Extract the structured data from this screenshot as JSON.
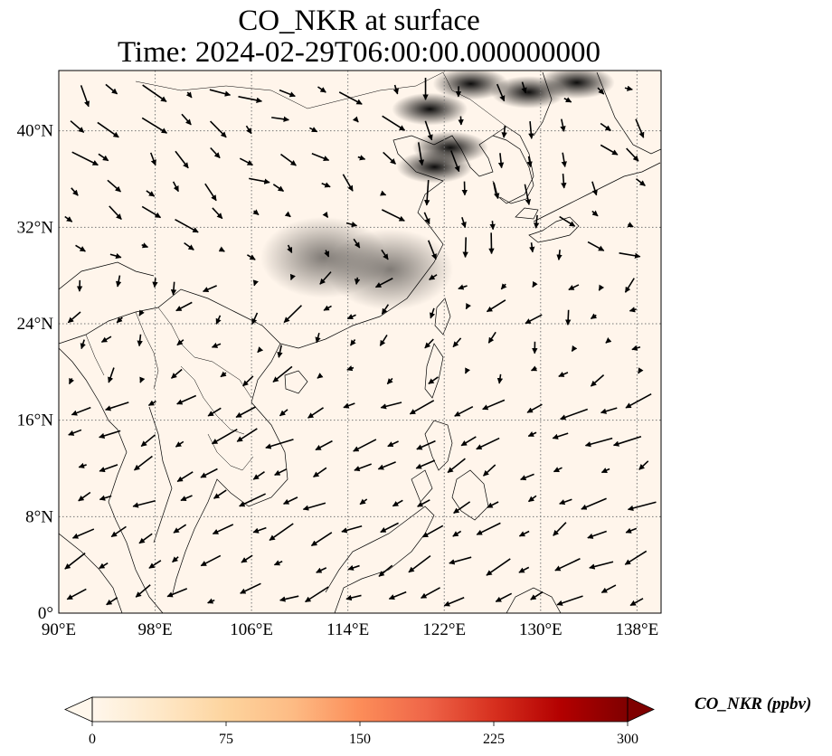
{
  "title": {
    "line1": "CO_NKR at surface",
    "line2": "Time: 2024-02-29T06:00:00.000000000"
  },
  "map": {
    "lon_range": [
      90,
      140
    ],
    "lat_range": [
      0,
      45
    ],
    "lon_ticks": [
      {
        "value": 90,
        "label": "90°E"
      },
      {
        "value": 98,
        "label": "98°E"
      },
      {
        "value": 106,
        "label": "106°E"
      },
      {
        "value": 114,
        "label": "114°E"
      },
      {
        "value": 122,
        "label": "122°E"
      },
      {
        "value": 130,
        "label": "130°E"
      },
      {
        "value": 138,
        "label": "138°E"
      }
    ],
    "lat_ticks": [
      {
        "value": 0,
        "label": "0°"
      },
      {
        "value": 8,
        "label": "8°N"
      },
      {
        "value": 16,
        "label": "16°N"
      },
      {
        "value": 24,
        "label": "24°N"
      },
      {
        "value": 32,
        "label": "32°N"
      },
      {
        "value": 40,
        "label": "40°N"
      }
    ],
    "gridlines": true,
    "background_color": "#fff5eb",
    "coastline_color": "#000000"
  },
  "colorbar": {
    "label": "CO_NKR (ppbv)",
    "ticks": [
      "0",
      "75",
      "150",
      "225",
      "300"
    ],
    "tick_values": [
      0,
      75,
      150,
      225,
      300
    ],
    "range": [
      0,
      300
    ],
    "extend": "both",
    "colormap": "OrRd",
    "colors": [
      "#fff7ec",
      "#fee8c8",
      "#fdd49e",
      "#fdbb84",
      "#fc8d59",
      "#ef6548",
      "#d7301f",
      "#b30000",
      "#7f0000"
    ]
  },
  "co_plumes": [
    {
      "lon": 121.2,
      "lat": 37.0,
      "value": 290
    },
    {
      "lon": 120.8,
      "lat": 41.8,
      "value": 260
    },
    {
      "lon": 124.2,
      "lat": 43.9,
      "value": 220
    },
    {
      "lon": 122.5,
      "lat": 38.6,
      "value": 240
    },
    {
      "lon": 129.0,
      "lat": 43.2,
      "value": 150
    },
    {
      "lon": 133.0,
      "lat": 44.0,
      "value": 140
    },
    {
      "lon": 117.5,
      "lat": 28.5,
      "value": 40
    },
    {
      "lon": 112.0,
      "lat": 29.5,
      "value": 30
    }
  ]
}
